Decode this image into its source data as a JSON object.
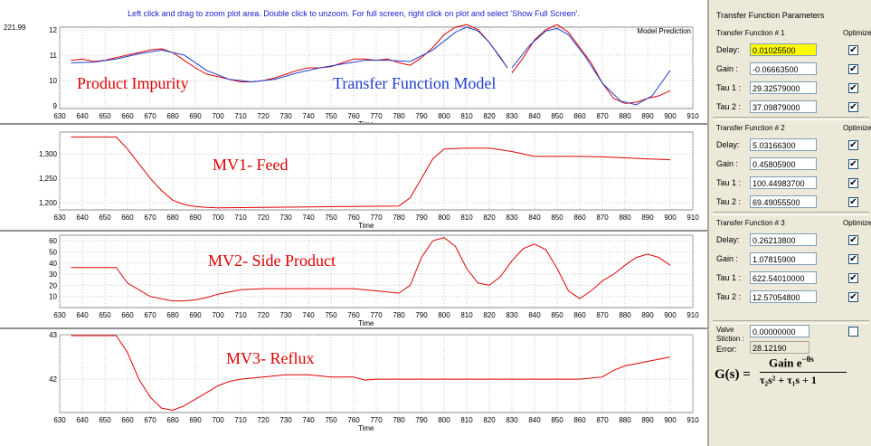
{
  "hint": "Left click and drag to zoom plot area. Double click to unzoom. For full screen, right click on plot and select 'Show Full Screen'.",
  "chart_data": [
    {
      "type": "line",
      "name": "impurity",
      "title": "Product Impurity",
      "overlay_label": "Transfer Function Model",
      "legend": "Model Prediction",
      "xlabel": "Time",
      "top_label": "221.99",
      "xlim": [
        630,
        910
      ],
      "ylim": [
        8.9,
        12.1
      ],
      "yticks": [
        "12",
        "11",
        "10",
        "9"
      ],
      "ytick_values": [
        12,
        11,
        10,
        9
      ],
      "xticks": [
        630,
        640,
        650,
        660,
        670,
        680,
        690,
        700,
        710,
        720,
        730,
        740,
        750,
        760,
        770,
        780,
        790,
        800,
        810,
        820,
        830,
        840,
        850,
        860,
        870,
        880,
        890,
        900,
        910
      ],
      "series": [
        {
          "name": "measured",
          "color": "#e00000",
          "points": [
            [
              635,
              10.8
            ],
            [
              640,
              10.85
            ],
            [
              645,
              10.75
            ],
            [
              650,
              10.8
            ],
            [
              655,
              10.9
            ],
            [
              660,
              11.0
            ],
            [
              665,
              11.1
            ],
            [
              670,
              11.2
            ],
            [
              675,
              11.25
            ],
            [
              680,
              11.1
            ],
            [
              685,
              10.8
            ],
            [
              690,
              10.5
            ],
            [
              695,
              10.25
            ],
            [
              700,
              10.15
            ],
            [
              705,
              10.05
            ],
            [
              710,
              9.95
            ],
            [
              715,
              9.95
            ],
            [
              720,
              10.0
            ],
            [
              725,
              10.1
            ],
            [
              730,
              10.25
            ],
            [
              735,
              10.4
            ],
            [
              740,
              10.5
            ],
            [
              745,
              10.5
            ],
            [
              750,
              10.55
            ],
            [
              755,
              10.7
            ],
            [
              760,
              10.85
            ],
            [
              765,
              10.85
            ],
            [
              770,
              10.8
            ],
            [
              775,
              10.85
            ],
            [
              780,
              10.7
            ],
            [
              785,
              10.6
            ],
            [
              790,
              10.9
            ],
            [
              795,
              11.3
            ],
            [
              800,
              11.8
            ],
            [
              805,
              12.1
            ],
            [
              810,
              12.2
            ],
            [
              815,
              12.0
            ],
            [
              820,
              11.5
            ],
            [
              825,
              10.9
            ],
            [
              828,
              10.5
            ]
          ]
        },
        {
          "name": "measured2",
          "color": "#e00000",
          "points": [
            [
              830,
              10.3
            ],
            [
              835,
              10.9
            ],
            [
              840,
              11.6
            ],
            [
              845,
              12.0
            ],
            [
              850,
              12.2
            ],
            [
              855,
              11.9
            ],
            [
              860,
              11.3
            ],
            [
              865,
              10.7
            ],
            [
              870,
              9.9
            ],
            [
              875,
              9.3
            ],
            [
              880,
              9.1
            ],
            [
              885,
              9.15
            ],
            [
              890,
              9.3
            ],
            [
              895,
              9.4
            ],
            [
              900,
              9.6
            ]
          ]
        },
        {
          "name": "model",
          "color": "#1f3fd0",
          "points": [
            [
              635,
              10.7
            ],
            [
              645,
              10.72
            ],
            [
              655,
              10.85
            ],
            [
              665,
              11.05
            ],
            [
              675,
              11.2
            ],
            [
              685,
              11.0
            ],
            [
              695,
              10.4
            ],
            [
              705,
              10.05
            ],
            [
              715,
              9.95
            ],
            [
              725,
              10.05
            ],
            [
              735,
              10.3
            ],
            [
              745,
              10.5
            ],
            [
              755,
              10.65
            ],
            [
              765,
              10.8
            ],
            [
              775,
              10.8
            ],
            [
              785,
              10.75
            ],
            [
              795,
              11.2
            ],
            [
              805,
              11.9
            ],
            [
              810,
              12.1
            ],
            [
              815,
              11.95
            ],
            [
              820,
              11.5
            ],
            [
              828,
              10.5
            ]
          ]
        },
        {
          "name": "model2",
          "color": "#1f3fd0",
          "points": [
            [
              830,
              10.5
            ],
            [
              838,
              11.4
            ],
            [
              845,
              11.95
            ],
            [
              850,
              12.05
            ],
            [
              855,
              11.8
            ],
            [
              862,
              11.0
            ],
            [
              870,
              9.9
            ],
            [
              878,
              9.2
            ],
            [
              885,
              9.05
            ],
            [
              892,
              9.4
            ],
            [
              900,
              10.4
            ]
          ]
        }
      ]
    },
    {
      "type": "line",
      "name": "feed",
      "title": "MV1- Feed",
      "xlabel": "Time",
      "xlim": [
        630,
        910
      ],
      "ylim": [
        1185,
        1345
      ],
      "yticks": [
        "1,300",
        "1,250",
        "1,200"
      ],
      "ytick_values": [
        1300,
        1250,
        1200
      ],
      "xticks": [
        630,
        640,
        650,
        660,
        670,
        680,
        690,
        700,
        710,
        720,
        730,
        740,
        750,
        760,
        770,
        780,
        790,
        800,
        810,
        820,
        830,
        840,
        850,
        860,
        870,
        880,
        890,
        900,
        910
      ],
      "series": [
        {
          "name": "feed",
          "color": "#e00000",
          "points": [
            [
              635,
              1335
            ],
            [
              655,
              1335
            ],
            [
              660,
              1310
            ],
            [
              665,
              1280
            ],
            [
              670,
              1250
            ],
            [
              675,
              1225
            ],
            [
              680,
              1205
            ],
            [
              685,
              1196
            ],
            [
              690,
              1192
            ],
            [
              695,
              1190
            ],
            [
              700,
              1189
            ],
            [
              720,
              1190
            ],
            [
              740,
              1191
            ],
            [
              760,
              1192
            ],
            [
              780,
              1193
            ],
            [
              785,
              1210
            ],
            [
              790,
              1250
            ],
            [
              795,
              1290
            ],
            [
              800,
              1310
            ],
            [
              810,
              1312
            ],
            [
              820,
              1312
            ],
            [
              830,
              1305
            ],
            [
              840,
              1295
            ],
            [
              850,
              1295
            ],
            [
              860,
              1295
            ],
            [
              870,
              1294
            ],
            [
              880,
              1292
            ],
            [
              890,
              1290
            ],
            [
              900,
              1288
            ]
          ]
        }
      ]
    },
    {
      "type": "line",
      "name": "sideproduct",
      "title": "MV2- Side Product",
      "xlabel": "Time",
      "xlim": [
        630,
        910
      ],
      "ylim": [
        0,
        65
      ],
      "yticks": [
        "60",
        "50",
        "40",
        "30",
        "20",
        "10"
      ],
      "ytick_values": [
        60,
        50,
        40,
        30,
        20,
        10
      ],
      "xticks": [
        630,
        640,
        650,
        660,
        670,
        680,
        690,
        700,
        710,
        720,
        730,
        740,
        750,
        760,
        770,
        780,
        790,
        800,
        810,
        820,
        830,
        840,
        850,
        860,
        870,
        880,
        890,
        900,
        910
      ],
      "series": [
        {
          "name": "side",
          "color": "#e00000",
          "points": [
            [
              635,
              36
            ],
            [
              655,
              36
            ],
            [
              660,
              22
            ],
            [
              665,
              16
            ],
            [
              670,
              10
            ],
            [
              675,
              8
            ],
            [
              680,
              6
            ],
            [
              685,
              6
            ],
            [
              690,
              7
            ],
            [
              695,
              9
            ],
            [
              700,
              12
            ],
            [
              705,
              14
            ],
            [
              710,
              16
            ],
            [
              720,
              17
            ],
            [
              730,
              17
            ],
            [
              740,
              17
            ],
            [
              750,
              17
            ],
            [
              760,
              17
            ],
            [
              770,
              15
            ],
            [
              780,
              13
            ],
            [
              785,
              20
            ],
            [
              790,
              45
            ],
            [
              795,
              60
            ],
            [
              800,
              63
            ],
            [
              805,
              55
            ],
            [
              810,
              35
            ],
            [
              815,
              22
            ],
            [
              820,
              20
            ],
            [
              825,
              28
            ],
            [
              830,
              42
            ],
            [
              835,
              53
            ],
            [
              840,
              57
            ],
            [
              845,
              52
            ],
            [
              850,
              35
            ],
            [
              855,
              15
            ],
            [
              860,
              8
            ],
            [
              865,
              15
            ],
            [
              870,
              24
            ],
            [
              875,
              30
            ],
            [
              880,
              38
            ],
            [
              885,
              45
            ],
            [
              890,
              48
            ],
            [
              895,
              45
            ],
            [
              900,
              38
            ]
          ]
        }
      ]
    },
    {
      "type": "line",
      "name": "reflux",
      "title": "MV3- Reflux",
      "xlabel": "Time",
      "xlim": [
        630,
        910
      ],
      "ylim": [
        41.25,
        43.0
      ],
      "yticks": [
        "43",
        "42"
      ],
      "ytick_values": [
        43,
        42
      ],
      "xticks": [
        630,
        640,
        650,
        660,
        670,
        680,
        690,
        700,
        710,
        720,
        730,
        740,
        750,
        760,
        770,
        780,
        790,
        800,
        810,
        820,
        830,
        840,
        850,
        860,
        870,
        880,
        890,
        900,
        910
      ],
      "series": [
        {
          "name": "reflux",
          "color": "#e00000",
          "points": [
            [
              635,
              42.98
            ],
            [
              655,
              42.98
            ],
            [
              660,
              42.6
            ],
            [
              665,
              42.0
            ],
            [
              670,
              41.6
            ],
            [
              675,
              41.35
            ],
            [
              680,
              41.3
            ],
            [
              685,
              41.4
            ],
            [
              690,
              41.55
            ],
            [
              695,
              41.7
            ],
            [
              700,
              41.85
            ],
            [
              705,
              41.95
            ],
            [
              710,
              42.0
            ],
            [
              720,
              42.05
            ],
            [
              730,
              42.1
            ],
            [
              740,
              42.1
            ],
            [
              750,
              42.05
            ],
            [
              760,
              42.05
            ],
            [
              765,
              41.98
            ],
            [
              770,
              42.0
            ],
            [
              780,
              42.0
            ],
            [
              800,
              42.0
            ],
            [
              820,
              42.0
            ],
            [
              840,
              42.0
            ],
            [
              860,
              42.0
            ],
            [
              870,
              42.05
            ],
            [
              875,
              42.2
            ],
            [
              880,
              42.3
            ],
            [
              890,
              42.4
            ],
            [
              900,
              42.5
            ]
          ]
        }
      ]
    }
  ],
  "panel": {
    "header": "Transfer Function Parameters",
    "groups": [
      {
        "title": "Transfer Function # 1",
        "optimize": "Optimize",
        "rows": [
          {
            "label": "Delay:",
            "value": "0.01025500",
            "highlight": true
          },
          {
            "label": "Gain :",
            "value": "-0.06663500"
          },
          {
            "label": "Tau 1 :",
            "value": "29.32579000"
          },
          {
            "label": "Tau 2 :",
            "value": "37.09879000"
          }
        ]
      },
      {
        "title": "Transfer Function # 2",
        "optimize": "Optimize",
        "rows": [
          {
            "label": "Delay:",
            "value": "5.03166300"
          },
          {
            "label": "Gain :",
            "value": "0.45805900"
          },
          {
            "label": "Tau 1 :",
            "value": "100.44983700"
          },
          {
            "label": "Tau 2 :",
            "value": "69.49055500"
          }
        ]
      },
      {
        "title": "Transfer Function # 3",
        "optimize": "Optimize",
        "rows": [
          {
            "label": "Delay:",
            "value": "0.26213800"
          },
          {
            "label": "Gain :",
            "value": "1.07815900"
          },
          {
            "label": "Tau 1 :",
            "value": "622.54010000"
          },
          {
            "label": "Tau 2 :",
            "value": "12.57054800"
          }
        ]
      }
    ],
    "stiction_label": "Valve Stiction :",
    "stiction_value": "0.00000000",
    "error_label": "Error:",
    "error_value": "28.12190",
    "formula": {
      "lhs": "G(s) =",
      "num": "Gain e",
      "num_sup": "−θs",
      "den": "τ₂s² + τ₁s + 1"
    },
    "check_mark": "✔"
  }
}
